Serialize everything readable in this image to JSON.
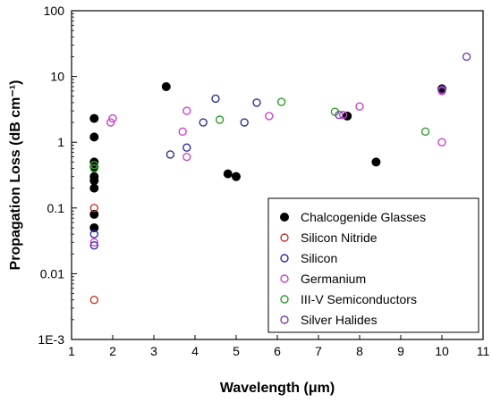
{
  "chart_data": {
    "type": "scatter",
    "title": "",
    "xlabel": "Wavelength (μm)",
    "ylabel": "Propagation Loss (dB cm⁻¹)",
    "xlim": [
      1,
      11
    ],
    "ylim": [
      0.001,
      100
    ],
    "yscale": "log",
    "x_ticks": [
      1,
      2,
      3,
      4,
      5,
      6,
      7,
      8,
      9,
      10,
      11
    ],
    "y_ticks": [
      {
        "value": 0.001,
        "label": "1E-3"
      },
      {
        "value": 0.01,
        "label": "0.01"
      },
      {
        "value": 0.1,
        "label": "0.1"
      },
      {
        "value": 1,
        "label": "1"
      },
      {
        "value": 10,
        "label": "10"
      },
      {
        "value": 100,
        "label": "100"
      }
    ],
    "grid": false,
    "legend_position": "bottom-right",
    "series": [
      {
        "name": "Chalcogenide Glasses",
        "color": "#000000",
        "marker": "filled-circle",
        "points": [
          [
            1.55,
            2.3
          ],
          [
            1.55,
            1.2
          ],
          [
            1.55,
            0.5
          ],
          [
            1.55,
            0.42
          ],
          [
            1.55,
            0.3
          ],
          [
            1.55,
            0.26
          ],
          [
            1.55,
            0.2
          ],
          [
            1.55,
            0.08
          ],
          [
            1.55,
            0.05
          ],
          [
            3.3,
            7.0
          ],
          [
            4.8,
            0.33
          ],
          [
            5.0,
            0.3
          ],
          [
            7.7,
            2.5
          ],
          [
            8.4,
            0.5
          ],
          [
            10.0,
            6.5
          ]
        ]
      },
      {
        "name": "Silicon Nitride",
        "color": "#c0392b",
        "marker": "open-circle",
        "points": [
          [
            1.55,
            0.1
          ],
          [
            1.55,
            0.004
          ]
        ]
      },
      {
        "name": "Silicon",
        "color": "#2e2e9e",
        "marker": "open-circle",
        "points": [
          [
            1.55,
            0.04
          ],
          [
            1.55,
            0.027
          ],
          [
            3.4,
            0.65
          ],
          [
            3.8,
            0.83
          ],
          [
            4.2,
            2.0
          ],
          [
            4.5,
            4.6
          ],
          [
            5.2,
            2.0
          ],
          [
            5.5,
            4.0
          ]
        ]
      },
      {
        "name": "Germanium",
        "color": "#cc44cc",
        "marker": "open-circle",
        "points": [
          [
            1.55,
            0.03
          ],
          [
            1.95,
            2.0
          ],
          [
            2.0,
            2.3
          ],
          [
            3.7,
            1.45
          ],
          [
            3.8,
            3.0
          ],
          [
            3.8,
            0.6
          ],
          [
            5.8,
            2.5
          ],
          [
            7.6,
            2.6
          ],
          [
            8.0,
            3.5
          ],
          [
            10.0,
            1.0
          ],
          [
            10.0,
            6.0
          ]
        ]
      },
      {
        "name": "III-V Semiconductors",
        "color": "#2e9e2e",
        "marker": "open-circle",
        "points": [
          [
            1.55,
            0.45
          ],
          [
            1.55,
            0.4
          ],
          [
            4.6,
            2.2
          ],
          [
            6.1,
            4.1
          ],
          [
            7.4,
            2.9
          ],
          [
            9.6,
            1.45
          ]
        ]
      },
      {
        "name": "Silver Halides",
        "color": "#7a3fb0",
        "marker": "open-circle",
        "points": [
          [
            7.5,
            2.6
          ],
          [
            10.0,
            6.3
          ],
          [
            10.6,
            20.0
          ]
        ]
      }
    ]
  }
}
